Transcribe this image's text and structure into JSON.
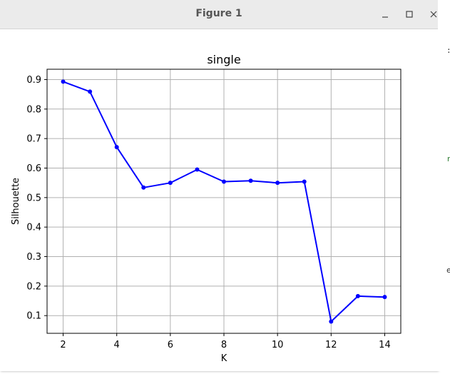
{
  "window": {
    "title": "Figure 1",
    "controls": {
      "minimize": "minimize-icon",
      "maximize": "maximize-icon",
      "close": "close-icon"
    }
  },
  "chart_data": {
    "type": "line",
    "title": "single",
    "xlabel": "K",
    "ylabel": "Silhouette",
    "x": [
      2,
      3,
      4,
      5,
      6,
      7,
      8,
      9,
      10,
      11,
      12,
      13,
      14
    ],
    "series": [
      {
        "color": "#0000ff",
        "marker": "circle",
        "values": [
          0.893,
          0.859,
          0.671,
          0.534,
          0.55,
          0.595,
          0.554,
          0.557,
          0.55,
          0.554,
          0.08,
          0.166,
          0.163
        ]
      }
    ],
    "xlim": [
      1.4,
      14.6
    ],
    "ylim": [
      0.04,
      0.935
    ],
    "xticks": [
      "2",
      "4",
      "6",
      "8",
      "10",
      "12",
      "14"
    ],
    "yticks": [
      "0.1",
      "0.2",
      "0.3",
      "0.4",
      "0.5",
      "0.6",
      "0.7",
      "0.8",
      "0.9"
    ],
    "grid": true,
    "colors": {
      "line": "#0000ff",
      "grid": "#b0b0b0"
    }
  }
}
